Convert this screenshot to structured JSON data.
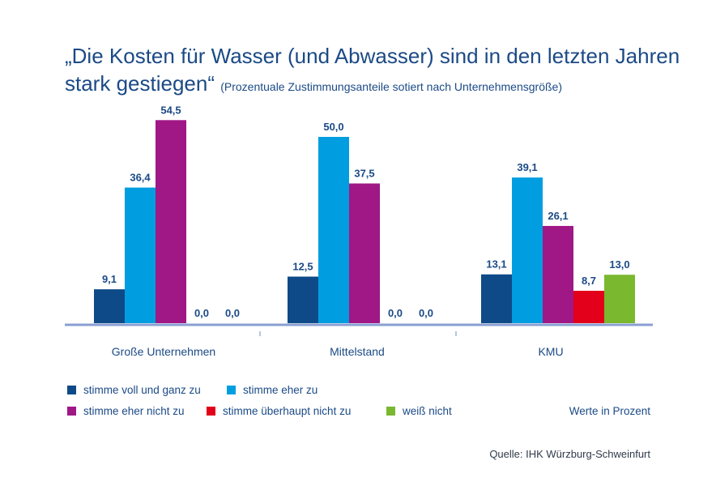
{
  "title": {
    "main": "„Die Kosten für Wasser (und Abwasser) sind in den letzten Jahren stark gestiegen“",
    "subtitle": "(Prozentuale Zustimmungsanteile sotiert nach Unternehmensgröße)"
  },
  "colors": {
    "voll": "#0e4a87",
    "eher": "#009ee0",
    "eher_nicht": "#a01786",
    "ueberhaupt_nicht": "#e2001a",
    "weiss_nicht": "#7ab82f",
    "axis": "#8a9fd3",
    "text": "#1b4a86"
  },
  "chart_data": {
    "type": "bar",
    "categories": [
      "Große Unternehmen",
      "Mittelstand",
      "KMU"
    ],
    "series": [
      {
        "name": "stimme voll und ganz zu",
        "values": [
          9.1,
          12.5,
          13.1
        ]
      },
      {
        "name": "stimme eher zu",
        "values": [
          36.4,
          50.0,
          39.1
        ]
      },
      {
        "name": "stimme eher nicht zu",
        "values": [
          54.5,
          37.5,
          26.1
        ]
      },
      {
        "name": "stimme überhaupt nicht zu",
        "values": [
          0.0,
          0.0,
          8.7
        ]
      },
      {
        "name": "weiß nicht",
        "values": [
          0.0,
          0.0,
          13.0
        ]
      }
    ],
    "value_labels": [
      [
        "9,1",
        "12,5",
        "13,1"
      ],
      [
        "36,4",
        "50,0",
        "39,1"
      ],
      [
        "54,5",
        "37,5",
        "26,1"
      ],
      [
        "0,0",
        "0,0",
        "8,7"
      ],
      [
        "0,0",
        "0,0",
        "13,0"
      ]
    ],
    "ylim": [
      0,
      55
    ],
    "grid": false,
    "legend_position": "bottom"
  },
  "note": "Werte in Prozent",
  "source": "Quelle: IHK Würzburg-Schweinfurt"
}
